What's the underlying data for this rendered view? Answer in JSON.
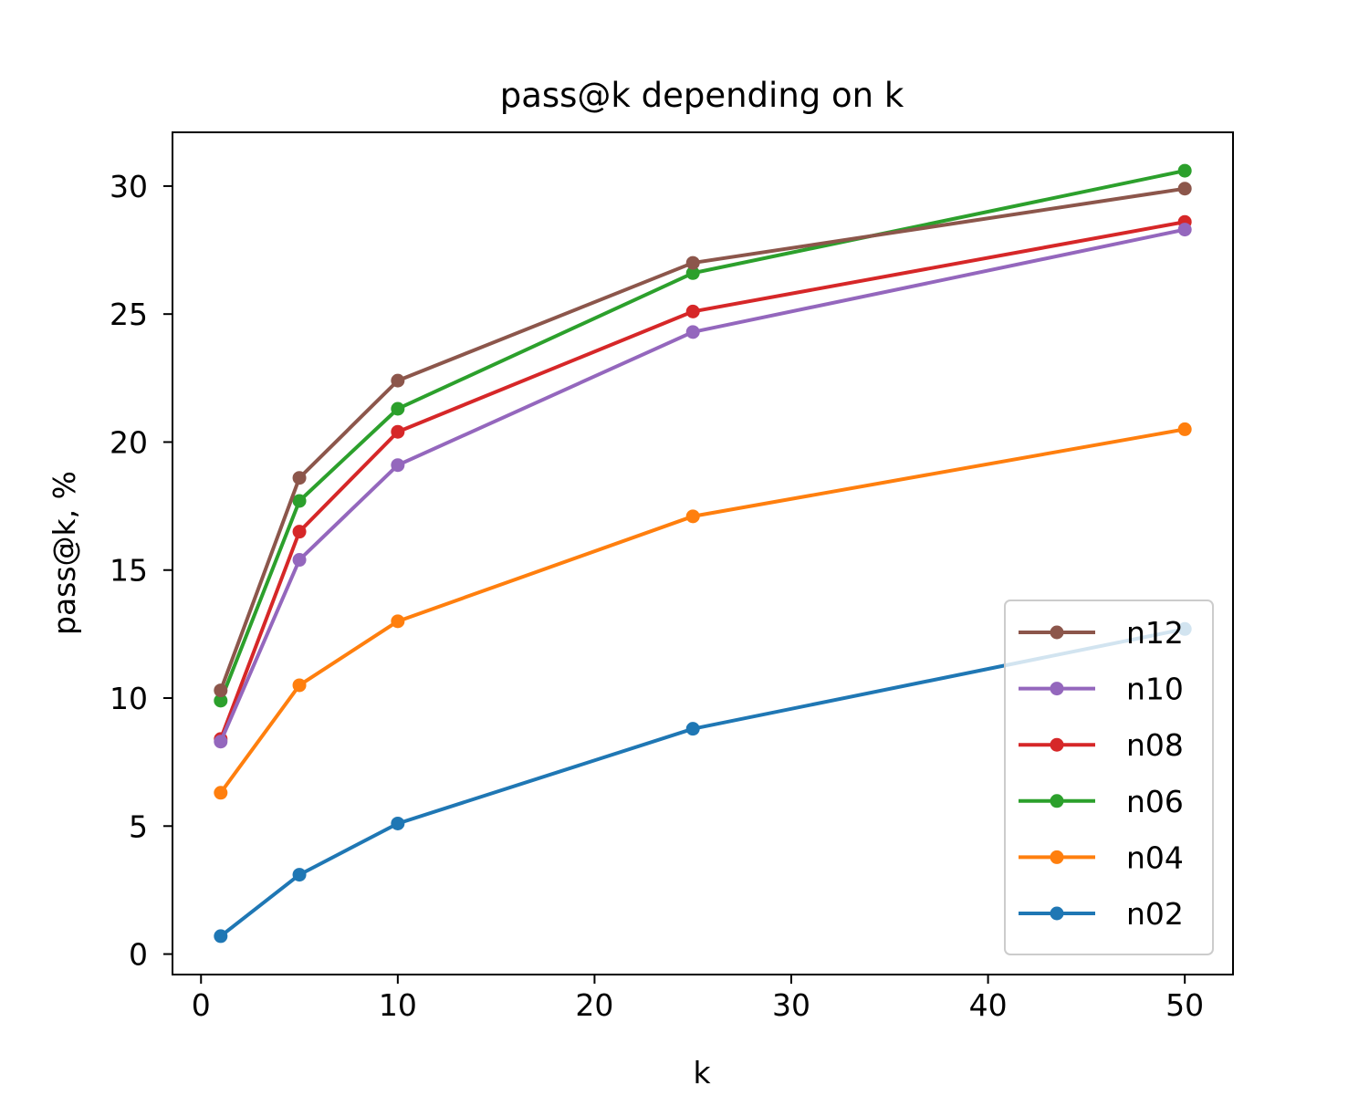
{
  "chart_data": {
    "type": "line",
    "title": "pass@k depending on k",
    "xlabel": "k",
    "ylabel": "pass@k, %",
    "x": [
      1,
      5,
      10,
      25,
      50
    ],
    "xlim": [
      -1.45,
      52.45
    ],
    "ylim": [
      -0.8,
      32.1
    ],
    "xticks": [
      0,
      10,
      20,
      30,
      40,
      50
    ],
    "yticks": [
      0,
      5,
      10,
      15,
      20,
      25,
      30
    ],
    "grid": false,
    "legend_position": "bottom-right",
    "series": [
      {
        "name": "n12",
        "color": "#8c564b",
        "values": [
          10.3,
          18.6,
          22.4,
          27.0,
          29.9
        ]
      },
      {
        "name": "n10",
        "color": "#9467bd",
        "values": [
          8.3,
          15.4,
          19.1,
          24.3,
          28.3
        ]
      },
      {
        "name": "n08",
        "color": "#d62728",
        "values": [
          8.4,
          16.5,
          20.4,
          25.1,
          28.6
        ]
      },
      {
        "name": "n06",
        "color": "#2ca02c",
        "values": [
          9.9,
          17.7,
          21.3,
          26.6,
          30.6
        ]
      },
      {
        "name": "n04",
        "color": "#ff7f0e",
        "values": [
          6.3,
          10.5,
          13.0,
          17.1,
          20.5
        ]
      },
      {
        "name": "n02",
        "color": "#1f77b4",
        "values": [
          0.7,
          3.1,
          5.1,
          8.8,
          12.7
        ]
      }
    ]
  }
}
